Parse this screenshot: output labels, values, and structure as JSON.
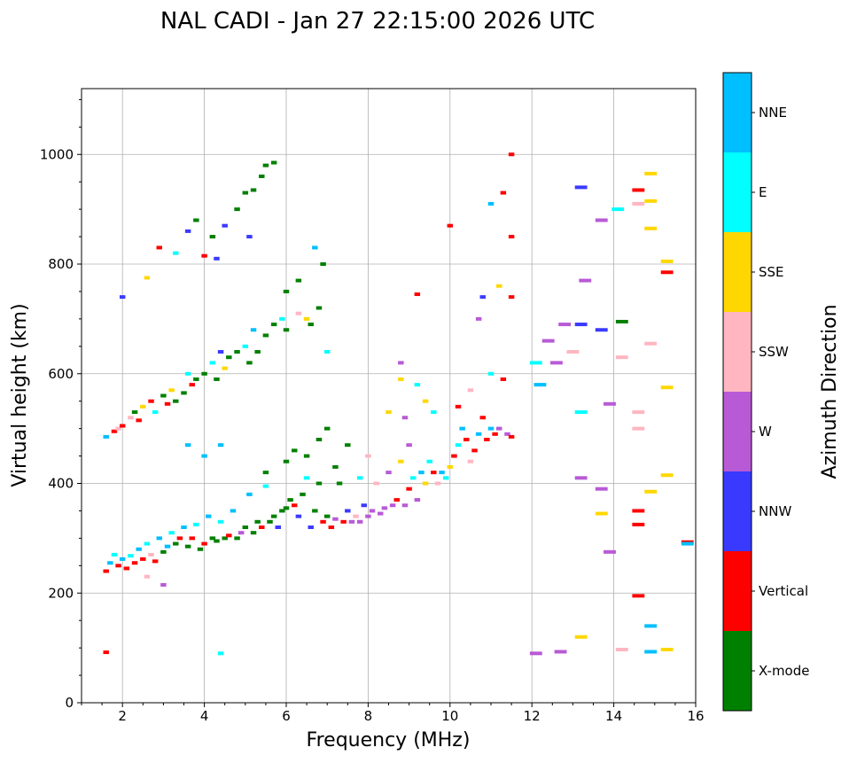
{
  "chart_data": {
    "type": "scatter",
    "title": "NAL CADI - Jan 27 22:15:00 2026 UTC",
    "xlabel": "Frequency (MHz)",
    "ylabel": "Virtual height (km)",
    "xlim": [
      1,
      16
    ],
    "ylim": [
      0,
      1120
    ],
    "xticks": [
      2,
      4,
      6,
      8,
      10,
      12,
      14,
      16
    ],
    "yticks": [
      0,
      200,
      400,
      600,
      800,
      1000
    ],
    "grid": true,
    "colorbar": {
      "label": "Azimuth Direction",
      "placement": "right",
      "categories": [
        "X-mode",
        "Vertical",
        "NNW",
        "W",
        "SSW",
        "SSE",
        "E",
        "NNE"
      ],
      "colors": [
        "#008000",
        "#ff0000",
        "#3a3aff",
        "#b85ad6",
        "#ffb6c1",
        "#ffd700",
        "#00ffff",
        "#00bfff"
      ]
    },
    "point_format": [
      "frequency_mhz",
      "virtual_height_km",
      "category_index"
    ],
    "points": [
      [
        1.6,
        240,
        1
      ],
      [
        1.7,
        255,
        7
      ],
      [
        1.8,
        270,
        6
      ],
      [
        1.9,
        250,
        1
      ],
      [
        2.0,
        262,
        7
      ],
      [
        2.1,
        245,
        1
      ],
      [
        2.2,
        268,
        6
      ],
      [
        2.3,
        255,
        1
      ],
      [
        2.4,
        280,
        7
      ],
      [
        2.5,
        262,
        1
      ],
      [
        2.6,
        290,
        6
      ],
      [
        2.7,
        270,
        4
      ],
      [
        2.8,
        258,
        1
      ],
      [
        2.9,
        300,
        7
      ],
      [
        3.0,
        275,
        0
      ],
      [
        3.1,
        285,
        7
      ],
      [
        3.2,
        310,
        6
      ],
      [
        3.3,
        290,
        0
      ],
      [
        3.4,
        300,
        1
      ],
      [
        3.5,
        320,
        7
      ],
      [
        3.6,
        285,
        0
      ],
      [
        3.7,
        300,
        1
      ],
      [
        3.8,
        325,
        6
      ],
      [
        3.9,
        280,
        0
      ],
      [
        4.0,
        290,
        1
      ],
      [
        4.1,
        340,
        7
      ],
      [
        4.2,
        300,
        0
      ],
      [
        4.3,
        295,
        0
      ],
      [
        4.4,
        330,
        6
      ],
      [
        4.5,
        300,
        0
      ],
      [
        4.6,
        305,
        1
      ],
      [
        4.7,
        350,
        7
      ],
      [
        4.8,
        300,
        0
      ],
      [
        4.9,
        310,
        3
      ],
      [
        5.0,
        320,
        0
      ],
      [
        5.1,
        380,
        7
      ],
      [
        5.2,
        310,
        0
      ],
      [
        5.3,
        330,
        0
      ],
      [
        5.4,
        320,
        1
      ],
      [
        5.5,
        395,
        6
      ],
      [
        5.6,
        330,
        0
      ],
      [
        5.7,
        340,
        0
      ],
      [
        5.8,
        320,
        2
      ],
      [
        5.9,
        350,
        0
      ],
      [
        6.0,
        355,
        0
      ],
      [
        6.1,
        370,
        0
      ],
      [
        6.2,
        360,
        1
      ],
      [
        6.3,
        340,
        2
      ],
      [
        6.4,
        380,
        0
      ],
      [
        6.5,
        410,
        6
      ],
      [
        6.6,
        320,
        2
      ],
      [
        6.7,
        350,
        0
      ],
      [
        6.8,
        400,
        0
      ],
      [
        6.9,
        330,
        1
      ],
      [
        7.0,
        340,
        0
      ],
      [
        7.1,
        320,
        1
      ],
      [
        7.2,
        335,
        3
      ],
      [
        7.3,
        400,
        0
      ],
      [
        7.4,
        330,
        1
      ],
      [
        7.5,
        350,
        2
      ],
      [
        7.6,
        330,
        3
      ],
      [
        7.7,
        340,
        4
      ],
      [
        7.8,
        330,
        3
      ],
      [
        7.9,
        360,
        2
      ],
      [
        8.0,
        340,
        3
      ],
      [
        8.1,
        350,
        3
      ],
      [
        8.2,
        400,
        4
      ],
      [
        8.3,
        345,
        3
      ],
      [
        8.4,
        355,
        3
      ],
      [
        8.5,
        420,
        3
      ],
      [
        8.6,
        360,
        3
      ],
      [
        8.7,
        370,
        1
      ],
      [
        8.8,
        440,
        5
      ],
      [
        8.9,
        360,
        3
      ],
      [
        9.0,
        390,
        1
      ],
      [
        9.1,
        410,
        6
      ],
      [
        9.2,
        370,
        3
      ],
      [
        9.3,
        420,
        7
      ],
      [
        9.4,
        400,
        5
      ],
      [
        9.5,
        440,
        6
      ],
      [
        9.6,
        420,
        1
      ],
      [
        9.7,
        400,
        4
      ],
      [
        9.8,
        420,
        7
      ],
      [
        9.9,
        410,
        6
      ],
      [
        10.0,
        430,
        5
      ],
      [
        10.1,
        450,
        1
      ],
      [
        10.2,
        470,
        6
      ],
      [
        10.3,
        500,
        7
      ],
      [
        10.4,
        480,
        1
      ],
      [
        10.5,
        440,
        4
      ],
      [
        10.6,
        460,
        1
      ],
      [
        10.7,
        490,
        7
      ],
      [
        10.8,
        520,
        1
      ],
      [
        10.9,
        480,
        1
      ],
      [
        11.0,
        500,
        7
      ],
      [
        11.1,
        490,
        1
      ],
      [
        11.2,
        500,
        3
      ],
      [
        11.4,
        490,
        3
      ],
      [
        11.5,
        485,
        1
      ],
      [
        8.5,
        530,
        5
      ],
      [
        8.8,
        590,
        5
      ],
      [
        8.9,
        520,
        3
      ],
      [
        9.0,
        470,
        3
      ],
      [
        9.2,
        580,
        6
      ],
      [
        9.4,
        550,
        5
      ],
      [
        9.6,
        530,
        6
      ],
      [
        10.2,
        540,
        1
      ],
      [
        10.5,
        570,
        4
      ],
      [
        10.7,
        700,
        3
      ],
      [
        10.8,
        740,
        2
      ],
      [
        11.0,
        600,
        6
      ],
      [
        11.2,
        760,
        5
      ],
      [
        11.3,
        590,
        1
      ],
      [
        1.6,
        485,
        7
      ],
      [
        1.8,
        495,
        1
      ],
      [
        1.9,
        500,
        4
      ],
      [
        2.0,
        505,
        1
      ],
      [
        2.2,
        520,
        4
      ],
      [
        2.3,
        530,
        0
      ],
      [
        2.4,
        515,
        1
      ],
      [
        2.5,
        540,
        5
      ],
      [
        2.7,
        550,
        1
      ],
      [
        2.8,
        530,
        6
      ],
      [
        3.0,
        560,
        0
      ],
      [
        3.1,
        545,
        1
      ],
      [
        3.2,
        570,
        5
      ],
      [
        3.3,
        550,
        0
      ],
      [
        3.5,
        565,
        0
      ],
      [
        3.6,
        600,
        6
      ],
      [
        3.7,
        580,
        1
      ],
      [
        3.8,
        590,
        0
      ],
      [
        4.0,
        600,
        0
      ],
      [
        4.2,
        620,
        6
      ],
      [
        4.3,
        590,
        0
      ],
      [
        4.4,
        640,
        2
      ],
      [
        4.5,
        610,
        5
      ],
      [
        4.6,
        630,
        0
      ],
      [
        4.8,
        640,
        0
      ],
      [
        5.0,
        650,
        6
      ],
      [
        5.1,
        620,
        0
      ],
      [
        5.2,
        680,
        7
      ],
      [
        5.3,
        640,
        0
      ],
      [
        5.5,
        670,
        0
      ],
      [
        5.7,
        690,
        0
      ],
      [
        5.9,
        700,
        6
      ],
      [
        6.0,
        680,
        0
      ],
      [
        6.3,
        710,
        4
      ],
      [
        6.5,
        700,
        5
      ],
      [
        6.6,
        690,
        0
      ],
      [
        6.8,
        720,
        0
      ],
      [
        7.0,
        640,
        6
      ],
      [
        3.6,
        470,
        7
      ],
      [
        4.0,
        450,
        7
      ],
      [
        4.4,
        470,
        7
      ],
      [
        2.9,
        830,
        1
      ],
      [
        3.3,
        820,
        6
      ],
      [
        3.6,
        860,
        2
      ],
      [
        3.8,
        880,
        0
      ],
      [
        4.0,
        815,
        1
      ],
      [
        4.2,
        850,
        0
      ],
      [
        4.3,
        810,
        2
      ],
      [
        4.5,
        870,
        2
      ],
      [
        4.8,
        900,
        0
      ],
      [
        5.0,
        930,
        0
      ],
      [
        5.1,
        850,
        2
      ],
      [
        5.2,
        935,
        0
      ],
      [
        5.4,
        960,
        0
      ],
      [
        5.5,
        980,
        0
      ],
      [
        5.7,
        985,
        0
      ],
      [
        6.0,
        750,
        0
      ],
      [
        6.3,
        770,
        0
      ],
      [
        6.7,
        830,
        7
      ],
      [
        6.9,
        800,
        0
      ],
      [
        5.5,
        420,
        0
      ],
      [
        6.0,
        440,
        0
      ],
      [
        6.2,
        460,
        0
      ],
      [
        6.5,
        450,
        0
      ],
      [
        6.8,
        480,
        0
      ],
      [
        7.0,
        500,
        0
      ],
      [
        7.2,
        430,
        0
      ],
      [
        7.5,
        470,
        0
      ],
      [
        7.8,
        410,
        6
      ],
      [
        8.0,
        450,
        4
      ],
      [
        10.0,
        870,
        1
      ],
      [
        11.0,
        910,
        7
      ],
      [
        11.3,
        930,
        1
      ],
      [
        11.5,
        1000,
        1
      ],
      [
        11.5,
        850,
        1
      ],
      [
        11.5,
        740,
        1
      ],
      [
        12.1,
        620,
        6
      ],
      [
        12.2,
        580,
        7
      ],
      [
        12.4,
        660,
        3
      ],
      [
        12.6,
        620,
        3
      ],
      [
        12.8,
        690,
        3
      ],
      [
        13.0,
        640,
        4
      ],
      [
        13.2,
        690,
        2
      ],
      [
        13.2,
        940,
        2
      ],
      [
        13.2,
        530,
        6
      ],
      [
        13.3,
        770,
        3
      ],
      [
        13.2,
        120,
        5
      ],
      [
        13.2,
        410,
        3
      ],
      [
        13.7,
        880,
        3
      ],
      [
        13.7,
        680,
        2
      ],
      [
        13.7,
        390,
        3
      ],
      [
        13.7,
        345,
        5
      ],
      [
        13.9,
        545,
        3
      ],
      [
        13.9,
        275,
        3
      ],
      [
        14.1,
        900,
        6
      ],
      [
        14.2,
        695,
        0
      ],
      [
        14.2,
        630,
        4
      ],
      [
        14.2,
        97,
        4
      ],
      [
        14.6,
        935,
        1
      ],
      [
        14.6,
        910,
        4
      ],
      [
        14.6,
        530,
        4
      ],
      [
        14.6,
        500,
        4
      ],
      [
        14.6,
        350,
        1
      ],
      [
        14.6,
        325,
        1
      ],
      [
        14.6,
        195,
        1
      ],
      [
        14.9,
        965,
        5
      ],
      [
        14.9,
        915,
        5
      ],
      [
        14.9,
        865,
        5
      ],
      [
        14.9,
        655,
        4
      ],
      [
        14.9,
        385,
        5
      ],
      [
        14.9,
        140,
        7
      ],
      [
        14.9,
        93,
        7
      ],
      [
        15.3,
        805,
        5
      ],
      [
        15.3,
        785,
        1
      ],
      [
        15.3,
        575,
        5
      ],
      [
        15.3,
        415,
        5
      ],
      [
        15.3,
        97,
        5
      ],
      [
        15.8,
        293,
        1
      ],
      [
        15.8,
        290,
        7
      ],
      [
        12.1,
        90,
        3
      ],
      [
        12.7,
        93,
        3
      ],
      [
        2.0,
        740,
        2
      ],
      [
        2.6,
        775,
        5
      ],
      [
        3.0,
        215,
        3
      ],
      [
        4.4,
        90,
        6
      ],
      [
        1.6,
        92,
        1
      ],
      [
        2.6,
        230,
        4
      ],
      [
        8.8,
        620,
        3
      ],
      [
        9.2,
        745,
        1
      ]
    ]
  }
}
